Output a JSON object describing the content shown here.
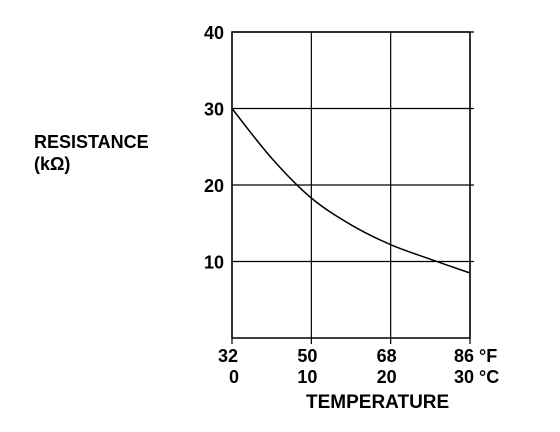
{
  "chart_data": {
    "type": "line",
    "ylabel": "RESISTANCE",
    "yunit": "(kΩ)",
    "xlabel": "TEMPERATURE",
    "ylim": [
      0,
      40
    ],
    "xlim_f": [
      32,
      86
    ],
    "yticks": [
      "10",
      "20",
      "30",
      "40"
    ],
    "ytick_values": [
      10,
      20,
      30,
      40
    ],
    "xticks_f": [
      "32",
      "50",
      "68",
      "86 °F"
    ],
    "xticks_c": [
      "0",
      "10",
      "20",
      "30 °C"
    ],
    "xtick_values_f": [
      32,
      50,
      68,
      86
    ],
    "grid": true,
    "series": [
      {
        "x_f": [
          32,
          41,
          50,
          59,
          68,
          77,
          86
        ],
        "y": [
          30,
          23.5,
          18.3,
          14.8,
          12.2,
          10.3,
          8.5
        ]
      }
    ]
  }
}
